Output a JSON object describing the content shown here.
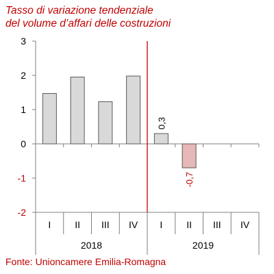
{
  "chart_data": {
    "type": "bar",
    "title_lines": [
      "Tasso di variazione tendenziale",
      "del volume d’affari delle costruzioni"
    ],
    "categories": [
      "I",
      "II",
      "III",
      "IV",
      "I",
      "II",
      "III",
      "IV"
    ],
    "groups": [
      {
        "label": "2018",
        "count": 4
      },
      {
        "label": "2019",
        "count": 4
      }
    ],
    "values": [
      1.47,
      1.95,
      1.23,
      1.98,
      0.3,
      -0.7,
      null,
      null
    ],
    "data_labels": [
      "",
      "",
      "",
      "",
      "0,3",
      "-0,7",
      "",
      ""
    ],
    "ylim": [
      -2,
      3
    ],
    "yticks": [
      3,
      2,
      1,
      0,
      -1,
      -2
    ],
    "ytick_labels": [
      "3",
      "2",
      "1",
      "0",
      "-1",
      "-2"
    ],
    "xlabel": "",
    "ylabel": "",
    "grid": false,
    "legend": "none",
    "colors": {
      "bar_positive": "#d9d9d9",
      "bar_negative": "#e6b8b7",
      "bar_stroke": "#595959",
      "axis": "#7f7f7f",
      "separator": "#c00000",
      "negative_text": "#c00000",
      "positive_text": "#000000",
      "title": "#c00000"
    }
  },
  "source": "Fonte: Unioncamere Emilia-Romagna"
}
